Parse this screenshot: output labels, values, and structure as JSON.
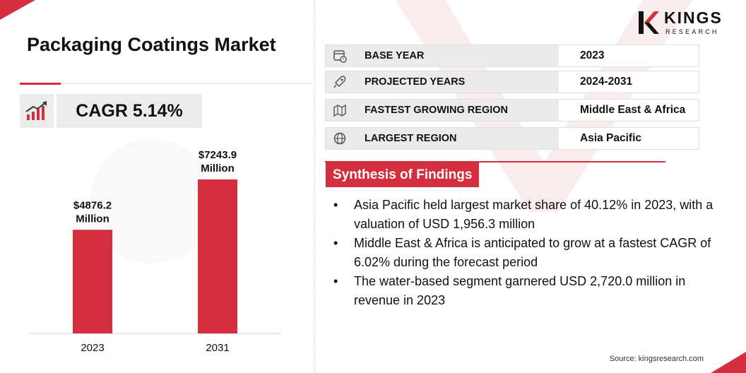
{
  "title": "Packaging Coatings Market",
  "cagr": "CAGR 5.14%",
  "brand": {
    "name": "KINGS",
    "sub": "RESEARCH"
  },
  "info_rows": [
    {
      "icon": "calendar-icon",
      "label": "BASE YEAR",
      "value": "2023"
    },
    {
      "icon": "rocket-icon",
      "label": "PROJECTED YEARS",
      "value": "2024-2031"
    },
    {
      "icon": "region-map-icon",
      "label": "FASTEST GROWING REGION",
      "value": "Middle East & Africa"
    },
    {
      "icon": "globe-icon",
      "label": "LARGEST REGION",
      "value": "Asia Pacific"
    }
  ],
  "synthesis": {
    "title": "Synthesis of Findings",
    "points": [
      "Asia Pacific held largest market share of 40.12% in 2023, with a valuation of USD 1,956.3 million",
      "Middle East & Africa is anticipated to grow at a fastest CAGR of 6.02% during the forecast period",
      "The water-based segment garnered USD 2,720.0 million in revenue in 2023"
    ]
  },
  "source": "Source: kingsresearch.com",
  "colors": {
    "accent": "#d32f3f",
    "panel": "#ececec"
  },
  "chart_data": {
    "type": "bar",
    "categories": [
      "2023",
      "2031"
    ],
    "values": [
      4876.2,
      7243.9
    ],
    "data_labels": [
      "$4876.2\nMillion",
      "$7243.9\nMillion"
    ],
    "title": "",
    "xlabel": "",
    "ylabel": "",
    "ylim": [
      0,
      7243.9
    ],
    "grid": false,
    "legend": "none",
    "bar_color": "#d32f3f"
  }
}
